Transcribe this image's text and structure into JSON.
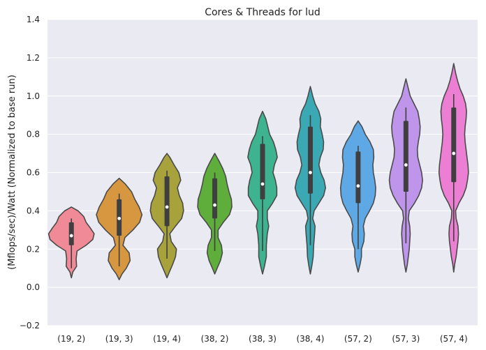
{
  "chart_data": {
    "type": "violin",
    "title": "Cores & Threads for lud",
    "xlabel": "",
    "ylabel": "(Mflops/sec)/Watt (Normalized to base run)",
    "ylim": [
      -0.2,
      1.4
    ],
    "yticks": [
      -0.2,
      0.0,
      0.2,
      0.4,
      0.6,
      0.8,
      1.0,
      1.2,
      1.4
    ],
    "ytick_labels": [
      "−0.2",
      "0.0",
      "0.2",
      "0.4",
      "0.6",
      "0.8",
      "1.0",
      "1.2",
      "1.4"
    ],
    "grid": true,
    "categories": [
      "(19, 2)",
      "(19, 3)",
      "(19, 4)",
      "(38, 2)",
      "(38, 3)",
      "(38, 4)",
      "(57, 2)",
      "(57, 3)",
      "(57, 4)"
    ],
    "colors": [
      "#f08a96",
      "#d79740",
      "#a7a23c",
      "#5fae3c",
      "#3db38f",
      "#3aa9b4",
      "#5fa8e6",
      "#bf95eb",
      "#ec7fd3"
    ],
    "violins": [
      {
        "min": 0.1,
        "q1": 0.22,
        "median": 0.27,
        "q3": 0.34,
        "max": 0.36,
        "profile": [
          [
            0.05,
            0
          ],
          [
            0.08,
            0.06
          ],
          [
            0.11,
            0.22
          ],
          [
            0.15,
            0.2
          ],
          [
            0.19,
            0.24
          ],
          [
            0.22,
            0.62
          ],
          [
            0.25,
            0.9
          ],
          [
            0.28,
            0.96
          ],
          [
            0.31,
            0.8
          ],
          [
            0.34,
            0.62
          ],
          [
            0.37,
            0.52
          ],
          [
            0.4,
            0.28
          ],
          [
            0.42,
            0
          ]
        ]
      },
      {
        "min": 0.11,
        "q1": 0.27,
        "median": 0.36,
        "q3": 0.46,
        "max": 0.49,
        "profile": [
          [
            0.04,
            0
          ],
          [
            0.07,
            0.12
          ],
          [
            0.1,
            0.3
          ],
          [
            0.14,
            0.46
          ],
          [
            0.18,
            0.42
          ],
          [
            0.22,
            0.16
          ],
          [
            0.26,
            0.24
          ],
          [
            0.3,
            0.58
          ],
          [
            0.34,
            0.86
          ],
          [
            0.38,
            0.96
          ],
          [
            0.42,
            0.84
          ],
          [
            0.46,
            0.66
          ],
          [
            0.5,
            0.52
          ],
          [
            0.54,
            0.26
          ],
          [
            0.57,
            0
          ]
        ]
      },
      {
        "min": 0.15,
        "q1": 0.32,
        "median": 0.42,
        "q3": 0.58,
        "max": 0.61,
        "profile": [
          [
            0.05,
            0
          ],
          [
            0.08,
            0.1
          ],
          [
            0.12,
            0.24
          ],
          [
            0.16,
            0.36
          ],
          [
            0.2,
            0.4
          ],
          [
            0.24,
            0.18
          ],
          [
            0.28,
            0.12
          ],
          [
            0.32,
            0.36
          ],
          [
            0.36,
            0.62
          ],
          [
            0.4,
            0.7
          ],
          [
            0.44,
            0.66
          ],
          [
            0.48,
            0.52
          ],
          [
            0.52,
            0.44
          ],
          [
            0.56,
            0.58
          ],
          [
            0.6,
            0.5
          ],
          [
            0.64,
            0.3
          ],
          [
            0.68,
            0.12
          ],
          [
            0.7,
            0
          ]
        ]
      },
      {
        "min": 0.19,
        "q1": 0.36,
        "median": 0.43,
        "q3": 0.57,
        "max": 0.6,
        "profile": [
          [
            0.07,
            0
          ],
          [
            0.1,
            0.1
          ],
          [
            0.14,
            0.24
          ],
          [
            0.18,
            0.32
          ],
          [
            0.22,
            0.28
          ],
          [
            0.26,
            0.14
          ],
          [
            0.3,
            0.14
          ],
          [
            0.34,
            0.36
          ],
          [
            0.38,
            0.62
          ],
          [
            0.42,
            0.72
          ],
          [
            0.46,
            0.7
          ],
          [
            0.5,
            0.6
          ],
          [
            0.54,
            0.52
          ],
          [
            0.58,
            0.46
          ],
          [
            0.62,
            0.34
          ],
          [
            0.66,
            0.18
          ],
          [
            0.7,
            0
          ]
        ]
      },
      {
        "min": 0.19,
        "q1": 0.46,
        "median": 0.54,
        "q3": 0.75,
        "max": 0.79,
        "profile": [
          [
            0.07,
            0
          ],
          [
            0.11,
            0.08
          ],
          [
            0.16,
            0.16
          ],
          [
            0.22,
            0.16
          ],
          [
            0.28,
            0.2
          ],
          [
            0.32,
            0.26
          ],
          [
            0.36,
            0.2
          ],
          [
            0.4,
            0.2
          ],
          [
            0.44,
            0.42
          ],
          [
            0.48,
            0.6
          ],
          [
            0.52,
            0.6
          ],
          [
            0.56,
            0.54
          ],
          [
            0.6,
            0.44
          ],
          [
            0.64,
            0.5
          ],
          [
            0.68,
            0.62
          ],
          [
            0.72,
            0.56
          ],
          [
            0.76,
            0.46
          ],
          [
            0.8,
            0.3
          ],
          [
            0.84,
            0.22
          ],
          [
            0.88,
            0.14
          ],
          [
            0.92,
            0
          ]
        ]
      },
      {
        "min": 0.22,
        "q1": 0.49,
        "median": 0.6,
        "q3": 0.84,
        "max": 0.9,
        "profile": [
          [
            0.07,
            0
          ],
          [
            0.11,
            0.06
          ],
          [
            0.16,
            0.12
          ],
          [
            0.22,
            0.14
          ],
          [
            0.28,
            0.18
          ],
          [
            0.32,
            0.2
          ],
          [
            0.36,
            0.1
          ],
          [
            0.4,
            0.16
          ],
          [
            0.44,
            0.36
          ],
          [
            0.48,
            0.56
          ],
          [
            0.52,
            0.64
          ],
          [
            0.56,
            0.58
          ],
          [
            0.6,
            0.44
          ],
          [
            0.64,
            0.36
          ],
          [
            0.68,
            0.42
          ],
          [
            0.72,
            0.54
          ],
          [
            0.76,
            0.56
          ],
          [
            0.8,
            0.5
          ],
          [
            0.84,
            0.42
          ],
          [
            0.88,
            0.44
          ],
          [
            0.92,
            0.36
          ],
          [
            0.96,
            0.2
          ],
          [
            1.0,
            0.1
          ],
          [
            1.05,
            0
          ]
        ]
      },
      {
        "min": 0.2,
        "q1": 0.44,
        "median": 0.53,
        "q3": 0.71,
        "max": 0.74,
        "profile": [
          [
            0.08,
            0
          ],
          [
            0.12,
            0.08
          ],
          [
            0.16,
            0.14
          ],
          [
            0.2,
            0.14
          ],
          [
            0.24,
            0.24
          ],
          [
            0.28,
            0.26
          ],
          [
            0.32,
            0.22
          ],
          [
            0.36,
            0.3
          ],
          [
            0.4,
            0.48
          ],
          [
            0.44,
            0.64
          ],
          [
            0.48,
            0.72
          ],
          [
            0.52,
            0.74
          ],
          [
            0.56,
            0.7
          ],
          [
            0.6,
            0.64
          ],
          [
            0.64,
            0.62
          ],
          [
            0.68,
            0.66
          ],
          [
            0.72,
            0.64
          ],
          [
            0.76,
            0.5
          ],
          [
            0.8,
            0.3
          ],
          [
            0.84,
            0.16
          ],
          [
            0.87,
            0
          ]
        ]
      },
      {
        "min": 0.23,
        "q1": 0.5,
        "median": 0.64,
        "q3": 0.87,
        "max": 0.94,
        "profile": [
          [
            0.08,
            0
          ],
          [
            0.12,
            0.06
          ],
          [
            0.16,
            0.1
          ],
          [
            0.2,
            0.14
          ],
          [
            0.24,
            0.16
          ],
          [
            0.28,
            0.18
          ],
          [
            0.32,
            0.16
          ],
          [
            0.36,
            0.1
          ],
          [
            0.4,
            0.14
          ],
          [
            0.44,
            0.36
          ],
          [
            0.48,
            0.54
          ],
          [
            0.52,
            0.66
          ],
          [
            0.56,
            0.7
          ],
          [
            0.6,
            0.66
          ],
          [
            0.64,
            0.58
          ],
          [
            0.68,
            0.5
          ],
          [
            0.72,
            0.48
          ],
          [
            0.76,
            0.52
          ],
          [
            0.8,
            0.58
          ],
          [
            0.84,
            0.6
          ],
          [
            0.88,
            0.56
          ],
          [
            0.92,
            0.5
          ],
          [
            0.96,
            0.34
          ],
          [
            1.0,
            0.18
          ],
          [
            1.05,
            0.08
          ],
          [
            1.09,
            0
          ]
        ]
      },
      {
        "min": 0.24,
        "q1": 0.55,
        "median": 0.7,
        "q3": 0.94,
        "max": 1.01,
        "profile": [
          [
            0.08,
            0
          ],
          [
            0.12,
            0.04
          ],
          [
            0.16,
            0.1
          ],
          [
            0.2,
            0.14
          ],
          [
            0.24,
            0.18
          ],
          [
            0.28,
            0.2
          ],
          [
            0.32,
            0.18
          ],
          [
            0.36,
            0.1
          ],
          [
            0.4,
            0.08
          ],
          [
            0.44,
            0.22
          ],
          [
            0.48,
            0.4
          ],
          [
            0.52,
            0.52
          ],
          [
            0.56,
            0.58
          ],
          [
            0.6,
            0.62
          ],
          [
            0.64,
            0.6
          ],
          [
            0.68,
            0.56
          ],
          [
            0.72,
            0.52
          ],
          [
            0.76,
            0.48
          ],
          [
            0.8,
            0.46
          ],
          [
            0.84,
            0.48
          ],
          [
            0.88,
            0.52
          ],
          [
            0.92,
            0.54
          ],
          [
            0.96,
            0.5
          ],
          [
            1.0,
            0.4
          ],
          [
            1.04,
            0.26
          ],
          [
            1.08,
            0.16
          ],
          [
            1.12,
            0.08
          ],
          [
            1.17,
            0
          ]
        ]
      }
    ]
  }
}
